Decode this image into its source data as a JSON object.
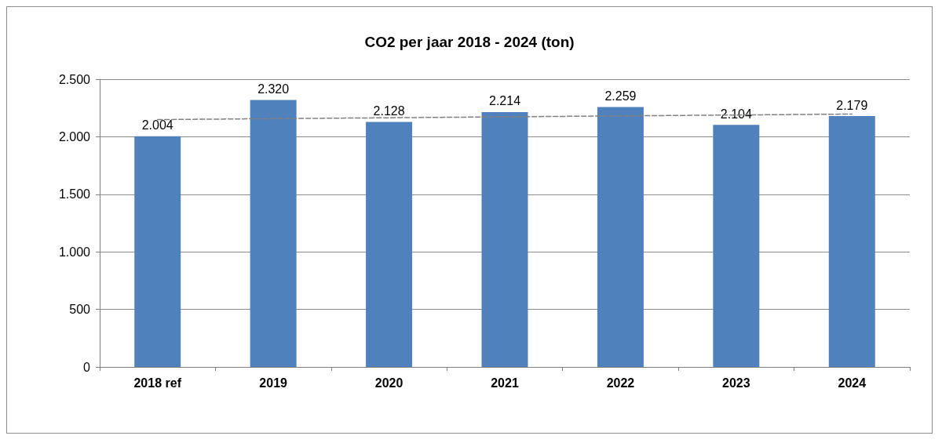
{
  "chart_data": {
    "type": "bar",
    "title": "CO2 per jaar 2018 - 2024 (ton)",
    "categories": [
      "2018 ref",
      "2019",
      "2020",
      "2021",
      "2022",
      "2023",
      "2024"
    ],
    "series": [
      {
        "color": "#4f81bd",
        "values": [
          2004,
          2320,
          2128,
          2214,
          2259,
          2104,
          2179
        ],
        "value_labels": [
          "2.004",
          "2.320",
          "2.128",
          "2.214",
          "2.259",
          "2.104",
          "2.179"
        ]
      },
      {
        "type": "line",
        "color": "#808080",
        "line_style": "dashed",
        "marker": "none",
        "values": [
          2149,
          2157,
          2165,
          2173,
          2181,
          2189,
          2197
        ]
      }
    ],
    "ylim": [
      0,
      2500
    ],
    "yticks": [
      {
        "value": 0,
        "label": "0"
      },
      {
        "value": 500,
        "label": "500"
      },
      {
        "value": 1000,
        "label": "1.000"
      },
      {
        "value": 1500,
        "label": "1.500"
      },
      {
        "value": 2000,
        "label": "2.000"
      },
      {
        "value": 2500,
        "label": "2.500"
      }
    ],
    "grid": "y"
  }
}
